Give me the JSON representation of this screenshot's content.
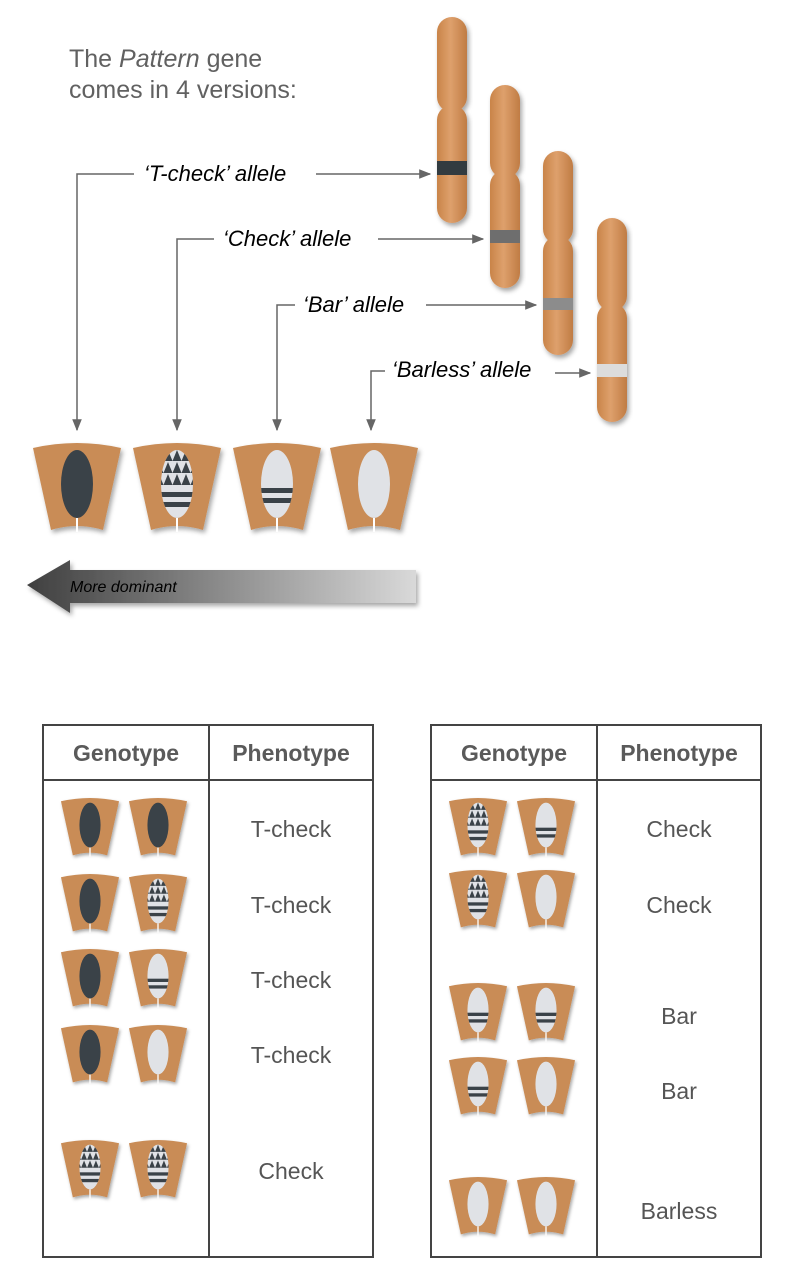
{
  "intro": {
    "prefix": "The ",
    "gene": "Pattern",
    "suffix": " gene",
    "line2": "comes in 4 versions:"
  },
  "alleles": [
    {
      "label": "‘T-check’ allele",
      "pattern": "tcheck"
    },
    {
      "label": "‘Check’ allele",
      "pattern": "check"
    },
    {
      "label": "‘Bar’ allele",
      "pattern": "bar"
    },
    {
      "label": "‘Barless’ allele",
      "pattern": "barless"
    }
  ],
  "dominance_label": "More dominant",
  "colors": {
    "chromosome": "#d6955f",
    "skin": "#c98c56",
    "dark": "#3a4248",
    "light": "#e0e2e6",
    "line": "#666666"
  },
  "table_left": {
    "header_genotype": "Genotype",
    "header_phenotype": "Phenotype",
    "rows": [
      {
        "genotype": [
          "tcheck",
          "tcheck"
        ],
        "phenotype": "T-check"
      },
      {
        "genotype": [
          "tcheck",
          "check"
        ],
        "phenotype": "T-check"
      },
      {
        "genotype": [
          "tcheck",
          "bar"
        ],
        "phenotype": "T-check"
      },
      {
        "genotype": [
          "tcheck",
          "barless"
        ],
        "phenotype": "T-check"
      },
      {
        "genotype": [
          "check",
          "check"
        ],
        "phenotype": "Check"
      }
    ]
  },
  "table_right": {
    "header_genotype": "Genotype",
    "header_phenotype": "Phenotype",
    "rows": [
      {
        "genotype": [
          "check",
          "bar"
        ],
        "phenotype": "Check"
      },
      {
        "genotype": [
          "check",
          "barless"
        ],
        "phenotype": "Check"
      },
      {
        "genotype": [
          "bar",
          "bar"
        ],
        "phenotype": "Bar"
      },
      {
        "genotype": [
          "bar",
          "barless"
        ],
        "phenotype": "Bar"
      },
      {
        "genotype": [
          "barless",
          "barless"
        ],
        "phenotype": "Barless"
      }
    ]
  }
}
